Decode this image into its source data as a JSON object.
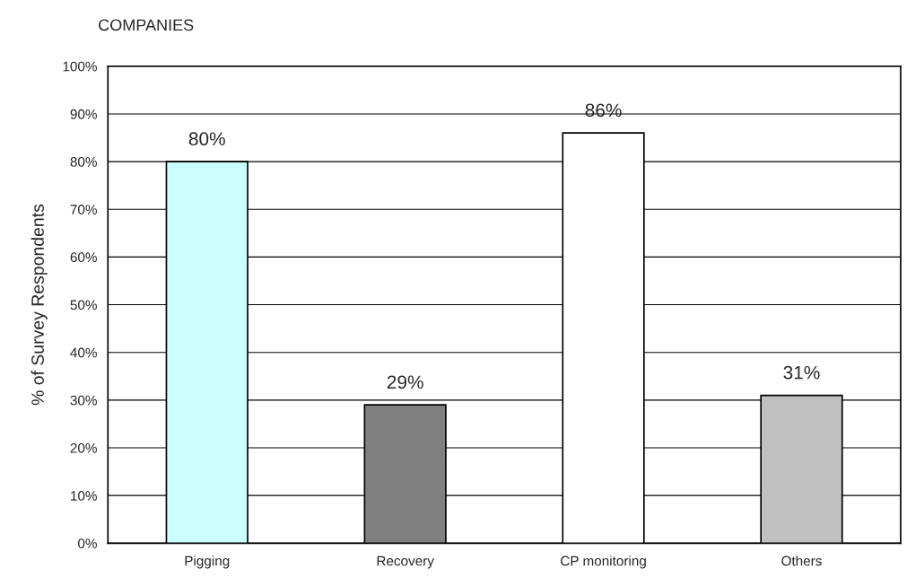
{
  "chart_data": {
    "type": "bar",
    "title": "COMPANIES",
    "ylabel": "% of Survey Respondents",
    "categories": [
      "Pigging",
      "Recovery",
      "CP monitoring",
      "Others"
    ],
    "values": [
      80,
      29,
      86,
      31
    ],
    "colors": [
      "#ccffff",
      "#808080",
      "#ffffff",
      "#c0c0c0"
    ],
    "value_labels": [
      "80%",
      "29%",
      "86%",
      "31%"
    ],
    "ylim": [
      0,
      100
    ],
    "yticks": [
      {
        "value": 0,
        "label": "0%"
      },
      {
        "value": 10,
        "label": "10%"
      },
      {
        "value": 20,
        "label": "20%"
      },
      {
        "value": 30,
        "label": "30%"
      },
      {
        "value": 40,
        "label": "40%"
      },
      {
        "value": 50,
        "label": "50%"
      },
      {
        "value": 60,
        "label": "60%"
      },
      {
        "value": 70,
        "label": "70%"
      },
      {
        "value": 80,
        "label": "80%"
      },
      {
        "value": 90,
        "label": "90%"
      },
      {
        "value": 100,
        "label": "100%"
      }
    ],
    "grid": "y",
    "legend": false
  }
}
